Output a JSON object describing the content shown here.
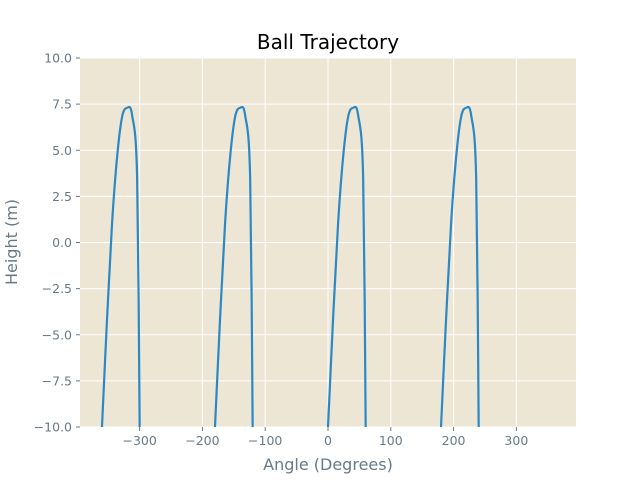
{
  "chart_data": {
    "type": "line",
    "title": "Ball Trajectory",
    "xlabel": "Angle (Degrees)",
    "ylabel": "Height (m)",
    "xlim": [
      -395,
      395
    ],
    "ylim": [
      -10,
      10
    ],
    "x_ticks": [
      -300,
      -200,
      -100,
      0,
      100,
      200,
      300
    ],
    "x_tick_labels": [
      "−300",
      "−200",
      "−100",
      "0",
      "100",
      "200",
      "300"
    ],
    "y_ticks": [
      -10,
      -7.5,
      -5,
      -2.5,
      0,
      2.5,
      5,
      7.5,
      10
    ],
    "y_tick_labels": [
      "−10.0",
      "−7.5",
      "−5.0",
      "−2.5",
      "0.0",
      "2.5",
      "5.0",
      "7.5",
      "10.0"
    ],
    "grid": true,
    "series": [
      {
        "x": [
          -360,
          -352,
          -344,
          -336,
          -328,
          -320,
          -312,
          -304,
          -300
        ],
        "y": [
          -10,
          -4.2,
          1.0,
          4.6,
          6.8,
          7.3,
          6.9,
          3.5,
          -10
        ]
      },
      {
        "x": [
          -180,
          -172,
          -164,
          -156,
          -148,
          -140,
          -132,
          -124,
          -120
        ],
        "y": [
          -10,
          -4.2,
          1.0,
          4.6,
          6.8,
          7.3,
          6.9,
          3.5,
          -10
        ]
      },
      {
        "x": [
          0,
          8,
          16,
          24,
          32,
          40,
          48,
          56,
          60
        ],
        "y": [
          -10,
          -4.2,
          1.0,
          4.6,
          6.8,
          7.3,
          6.9,
          3.5,
          -10
        ]
      },
      {
        "x": [
          180,
          188,
          196,
          204,
          212,
          220,
          228,
          236,
          240
        ],
        "y": [
          -10,
          -4.2,
          1.0,
          4.6,
          6.8,
          7.3,
          6.9,
          3.5,
          -10
        ]
      }
    ],
    "colors": {
      "plot_background": "#eee6d4",
      "grid": "#ffffff",
      "line": "#2b88c4",
      "axis_text": "#677a86"
    }
  }
}
